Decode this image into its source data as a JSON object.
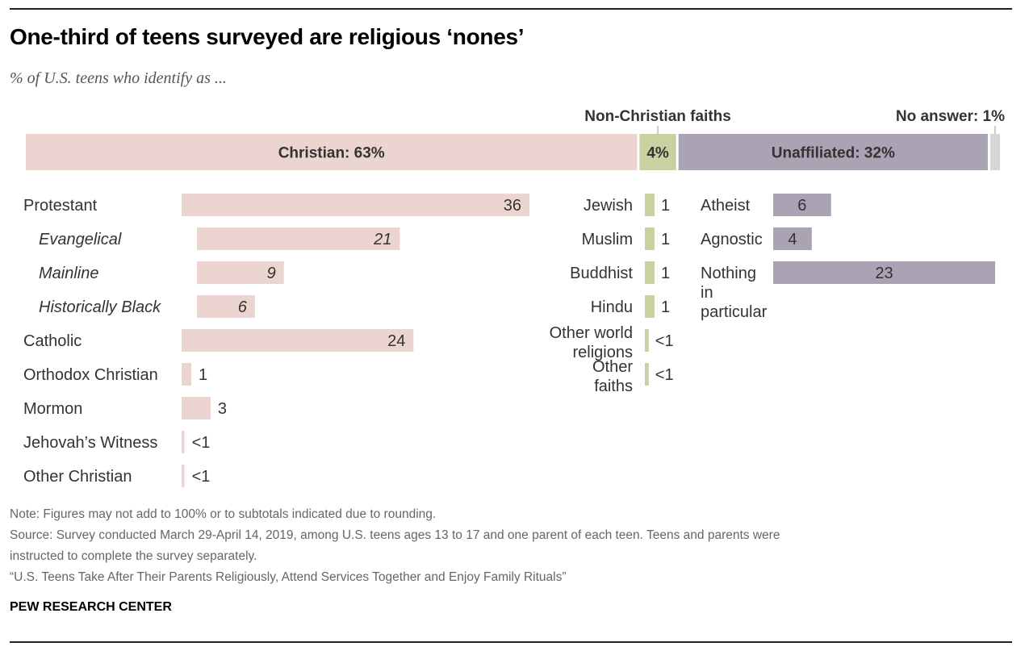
{
  "title": "One-third of teens surveyed are religious ‘nones’",
  "subtitle": "% of U.S. teens who identify as ...",
  "colors": {
    "christian": "#ecd5d1",
    "non_christian": "#c9d0a2",
    "unaffiliated": "#a9a3b4",
    "no_answer": "#d6d6d6",
    "text": "#222222",
    "muted": "#666666"
  },
  "chart_data": {
    "type": "bar",
    "top_bar": {
      "segments": [
        {
          "key": "christian",
          "label": "Christian: 63%",
          "value": 63
        },
        {
          "key": "non_christian",
          "label": "4%",
          "value": 4
        },
        {
          "key": "unaffiliated",
          "label": "Unaffiliated: 32%",
          "value": 32
        },
        {
          "key": "no_answer",
          "label": "",
          "value": 1
        }
      ],
      "callouts": [
        "Non-Christian faiths",
        "No answer: 1%"
      ]
    },
    "groups": [
      {
        "key": "christian",
        "items": [
          {
            "label": "Protestant",
            "value": 36,
            "value_label": "36",
            "sub": false
          },
          {
            "label": "Evangelical",
            "value": 21,
            "value_label": "21",
            "sub": true
          },
          {
            "label": "Mainline",
            "value": 9,
            "value_label": "9",
            "sub": true
          },
          {
            "label": "Historically Black",
            "value": 6,
            "value_label": "6",
            "sub": true
          },
          {
            "label": "Catholic",
            "value": 24,
            "value_label": "24",
            "sub": false
          },
          {
            "label": "Orthodox Christian",
            "value": 1,
            "value_label": "1",
            "sub": false
          },
          {
            "label": "Mormon",
            "value": 3,
            "value_label": "3",
            "sub": false
          },
          {
            "label": "Jehovah’s Witness",
            "value": 0.3,
            "value_label": "<1",
            "sub": false
          },
          {
            "label": "Other Christian",
            "value": 0.3,
            "value_label": "<1",
            "sub": false
          }
        ]
      },
      {
        "key": "non_christian",
        "items": [
          {
            "label": "Jewish",
            "value": 1,
            "value_label": "1"
          },
          {
            "label": "Muslim",
            "value": 1,
            "value_label": "1"
          },
          {
            "label": "Buddhist",
            "value": 1,
            "value_label": "1"
          },
          {
            "label": "Hindu",
            "value": 1,
            "value_label": "1"
          },
          {
            "label": "Other world religions",
            "value": 0.4,
            "value_label": "<1"
          },
          {
            "label": "Other faiths",
            "value": 0.4,
            "value_label": "<1"
          }
        ]
      },
      {
        "key": "unaffiliated",
        "items": [
          {
            "label": "Atheist",
            "value": 6,
            "value_label": "6"
          },
          {
            "label": "Agnostic",
            "value": 4,
            "value_label": "4"
          },
          {
            "label": "Nothing in particular",
            "value": 23,
            "value_label": "23"
          }
        ]
      }
    ]
  },
  "notes": {
    "note": "Note: Figures may not add to 100% or to subtotals indicated due to rounding.",
    "source_1": "Source: Survey conducted March 29-April 14, 2019, among U.S. teens ages 13 to 17 and one parent of each teen. Teens and parents were",
    "source_2": "instructed to complete the survey separately.",
    "report": "“U.S. Teens Take After Their Parents Religiously, Attend Services Together and Enjoy Family Rituals”"
  },
  "brand": "PEW RESEARCH CENTER"
}
